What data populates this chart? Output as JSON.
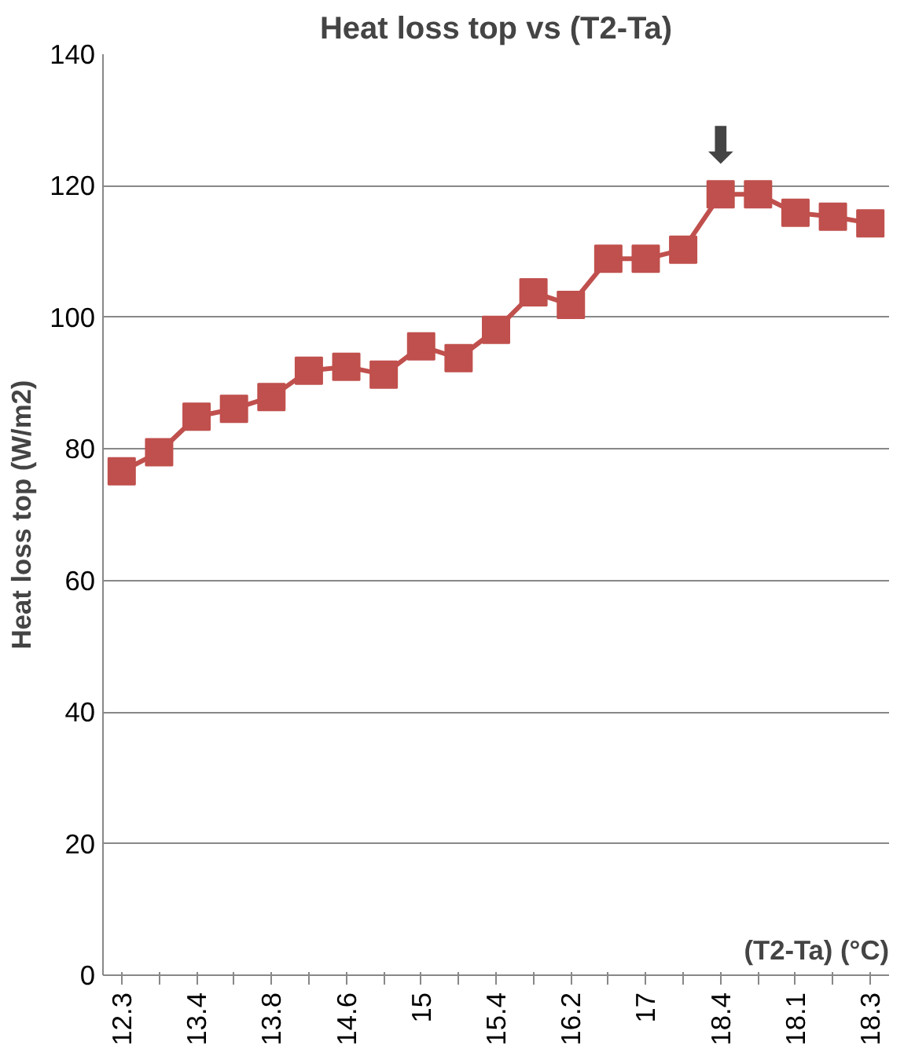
{
  "chart_data": {
    "type": "line",
    "title": "Heat loss top vs (T2-Ta)",
    "xlabel": "(T2-Ta) (°C)",
    "ylabel": "Heat loss top (W/m2)",
    "categories": [
      "12.3",
      null,
      "13.4",
      null,
      "13.8",
      null,
      "14.6",
      null,
      "15",
      null,
      "15.4",
      null,
      "16.2",
      null,
      "17",
      null,
      "18.4",
      null,
      "18.1",
      null,
      "18.3"
    ],
    "series": [
      {
        "color": "#c0504d",
        "values": [
          76.6,
          79.5,
          84.9,
          86.1,
          87.9,
          91.9,
          92.5,
          91.3,
          95.6,
          93.8,
          98.1,
          103.8,
          101.9,
          108.9,
          108.9,
          110.3,
          118.7,
          118.7,
          115.9,
          115.3,
          114.3
        ]
      }
    ],
    "ylim": [
      0,
      140
    ],
    "yticks": [
      0,
      20,
      40,
      60,
      80,
      100,
      120,
      140
    ],
    "grid": "y",
    "marker": "square",
    "line_style": "solid",
    "annotations": [
      {
        "text": "⬇",
        "x": "18.4",
        "y": 118.7
      }
    ]
  }
}
